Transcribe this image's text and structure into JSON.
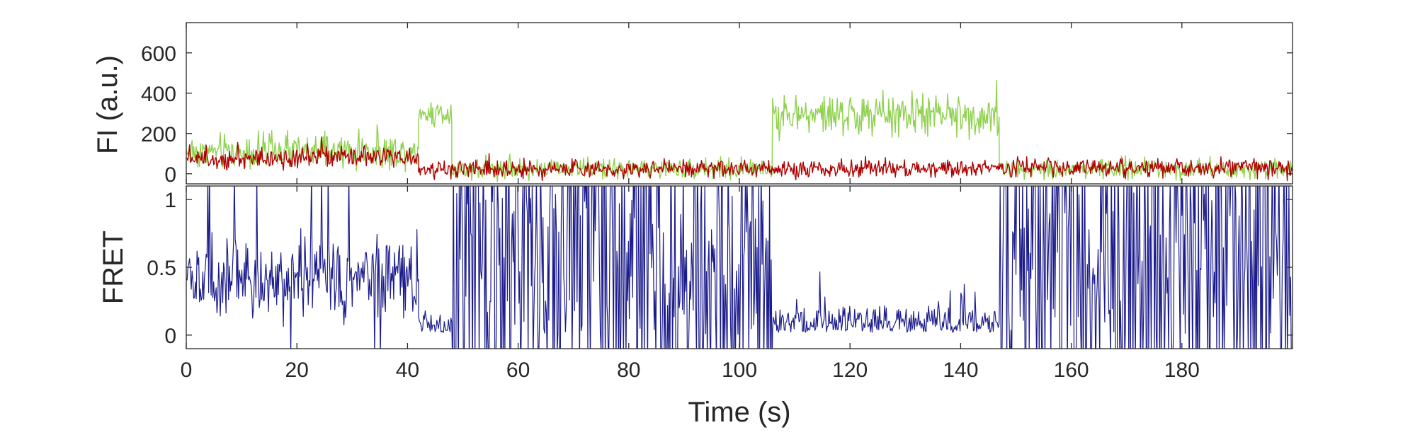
{
  "chart_data": [
    {
      "type": "line",
      "ylabel": "FI (a.u.)",
      "xlim": [
        0,
        200
      ],
      "ylim": [
        -50,
        750
      ],
      "yticks": [
        0,
        200,
        400,
        600
      ],
      "ytick_labels": [
        "0",
        "200",
        "400",
        "600"
      ],
      "grid": false,
      "series": [
        {
          "color": "#8fd14f",
          "segments": [
            {
              "x": [
                0,
                42
              ],
              "level": 110,
              "noise": 70
            },
            {
              "x": [
                42,
                48
              ],
              "level": 300,
              "noise": 55
            },
            {
              "x": [
                48,
                106
              ],
              "level": 25,
              "noise": 40
            },
            {
              "x": [
                106,
                147
              ],
              "level": 290,
              "noise": 85
            },
            {
              "x": [
                147,
                200
              ],
              "level": 25,
              "noise": 40
            }
          ]
        },
        {
          "color": "#b00000",
          "segments": [
            {
              "x": [
                0,
                42
              ],
              "level": 80,
              "noise": 45
            },
            {
              "x": [
                42,
                48
              ],
              "level": 20,
              "noise": 30
            },
            {
              "x": [
                48,
                106
              ],
              "level": 25,
              "noise": 35
            },
            {
              "x": [
                106,
                147
              ],
              "level": 25,
              "noise": 35
            },
            {
              "x": [
                147,
                200
              ],
              "level": 30,
              "noise": 38
            }
          ]
        }
      ]
    },
    {
      "type": "line",
      "xlabel": "Time (s)",
      "ylabel": "FRET",
      "xlim": [
        0,
        200
      ],
      "ylim": [
        -0.1,
        1.1
      ],
      "xticks": [
        0,
        20,
        40,
        60,
        80,
        100,
        120,
        140,
        160,
        180
      ],
      "xtick_labels": [
        "0",
        "20",
        "40",
        "60",
        "80",
        "100",
        "120",
        "140",
        "160",
        "180"
      ],
      "yticks": [
        0,
        0.5,
        1
      ],
      "ytick_labels": [
        "0",
        "0.5",
        "1"
      ],
      "grid": false,
      "series": [
        {
          "color": "#1c1c8c",
          "segments": [
            {
              "x": [
                0,
                42
              ],
              "mode": "mid",
              "level": 0.4,
              "noise": 0.25
            },
            {
              "x": [
                42,
                48
              ],
              "mode": "low",
              "level": 0.1,
              "noise": 0.08
            },
            {
              "x": [
                48,
                106
              ],
              "mode": "switch",
              "level": 0.5,
              "noise": 0.5
            },
            {
              "x": [
                106,
                147
              ],
              "mode": "low",
              "level": 0.1,
              "noise": 0.1
            },
            {
              "x": [
                147,
                200
              ],
              "mode": "switch",
              "level": 0.5,
              "noise": 0.5
            }
          ]
        }
      ]
    }
  ]
}
